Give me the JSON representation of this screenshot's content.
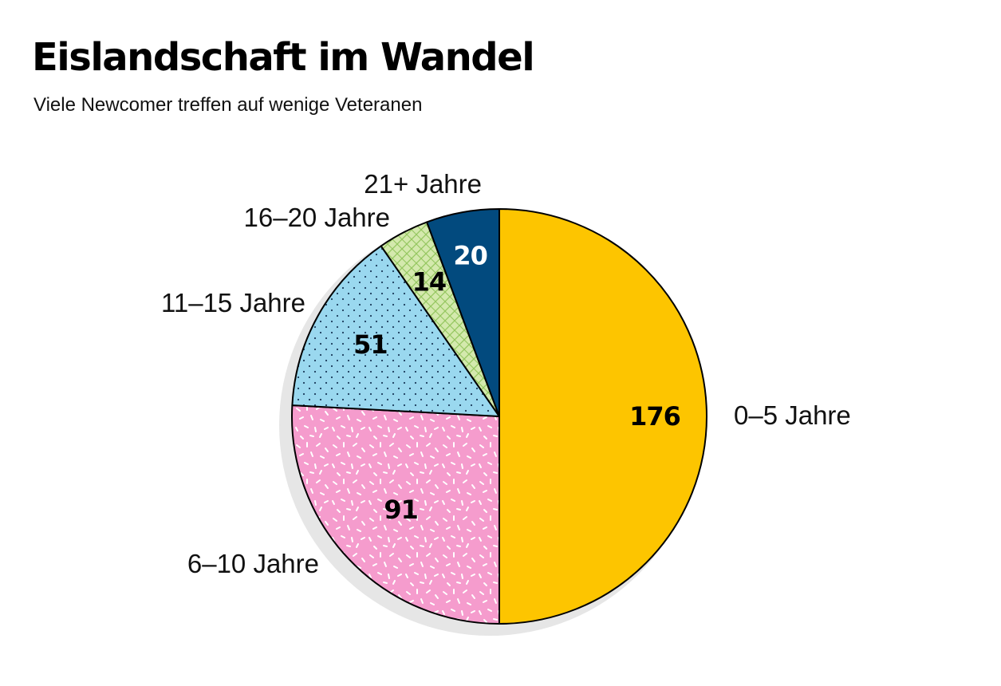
{
  "title": "Eislandschaft im Wandel",
  "subtitle": "Viele Newcomer treffen auf wenige Veteranen",
  "chart_data": {
    "type": "pie",
    "title": "Eislandschaft im Wandel",
    "subtitle": "Viele Newcomer treffen auf wenige Veteranen",
    "start": "12 o'clock",
    "direction": "clockwise",
    "categories": [
      "0–5 Jahre",
      "6–10 Jahre",
      "11–15 Jahre",
      "16–20 Jahre",
      "21+ Jahre"
    ],
    "values": [
      176,
      91,
      51,
      14,
      20
    ],
    "value_labels": [
      "176",
      "91",
      "51",
      "14",
      "20"
    ],
    "colors": [
      "#fdc500",
      "#f59ccd",
      "#9ad8ef",
      "#c9e29a",
      "#024a7e"
    ],
    "patterns": [
      "solid",
      "confetti-dashes",
      "dots",
      "crosshatch",
      "solid"
    ],
    "value_label_colors": [
      "#000000",
      "#000000",
      "#000000",
      "#000000",
      "#ffffff"
    ],
    "shadow": true
  }
}
